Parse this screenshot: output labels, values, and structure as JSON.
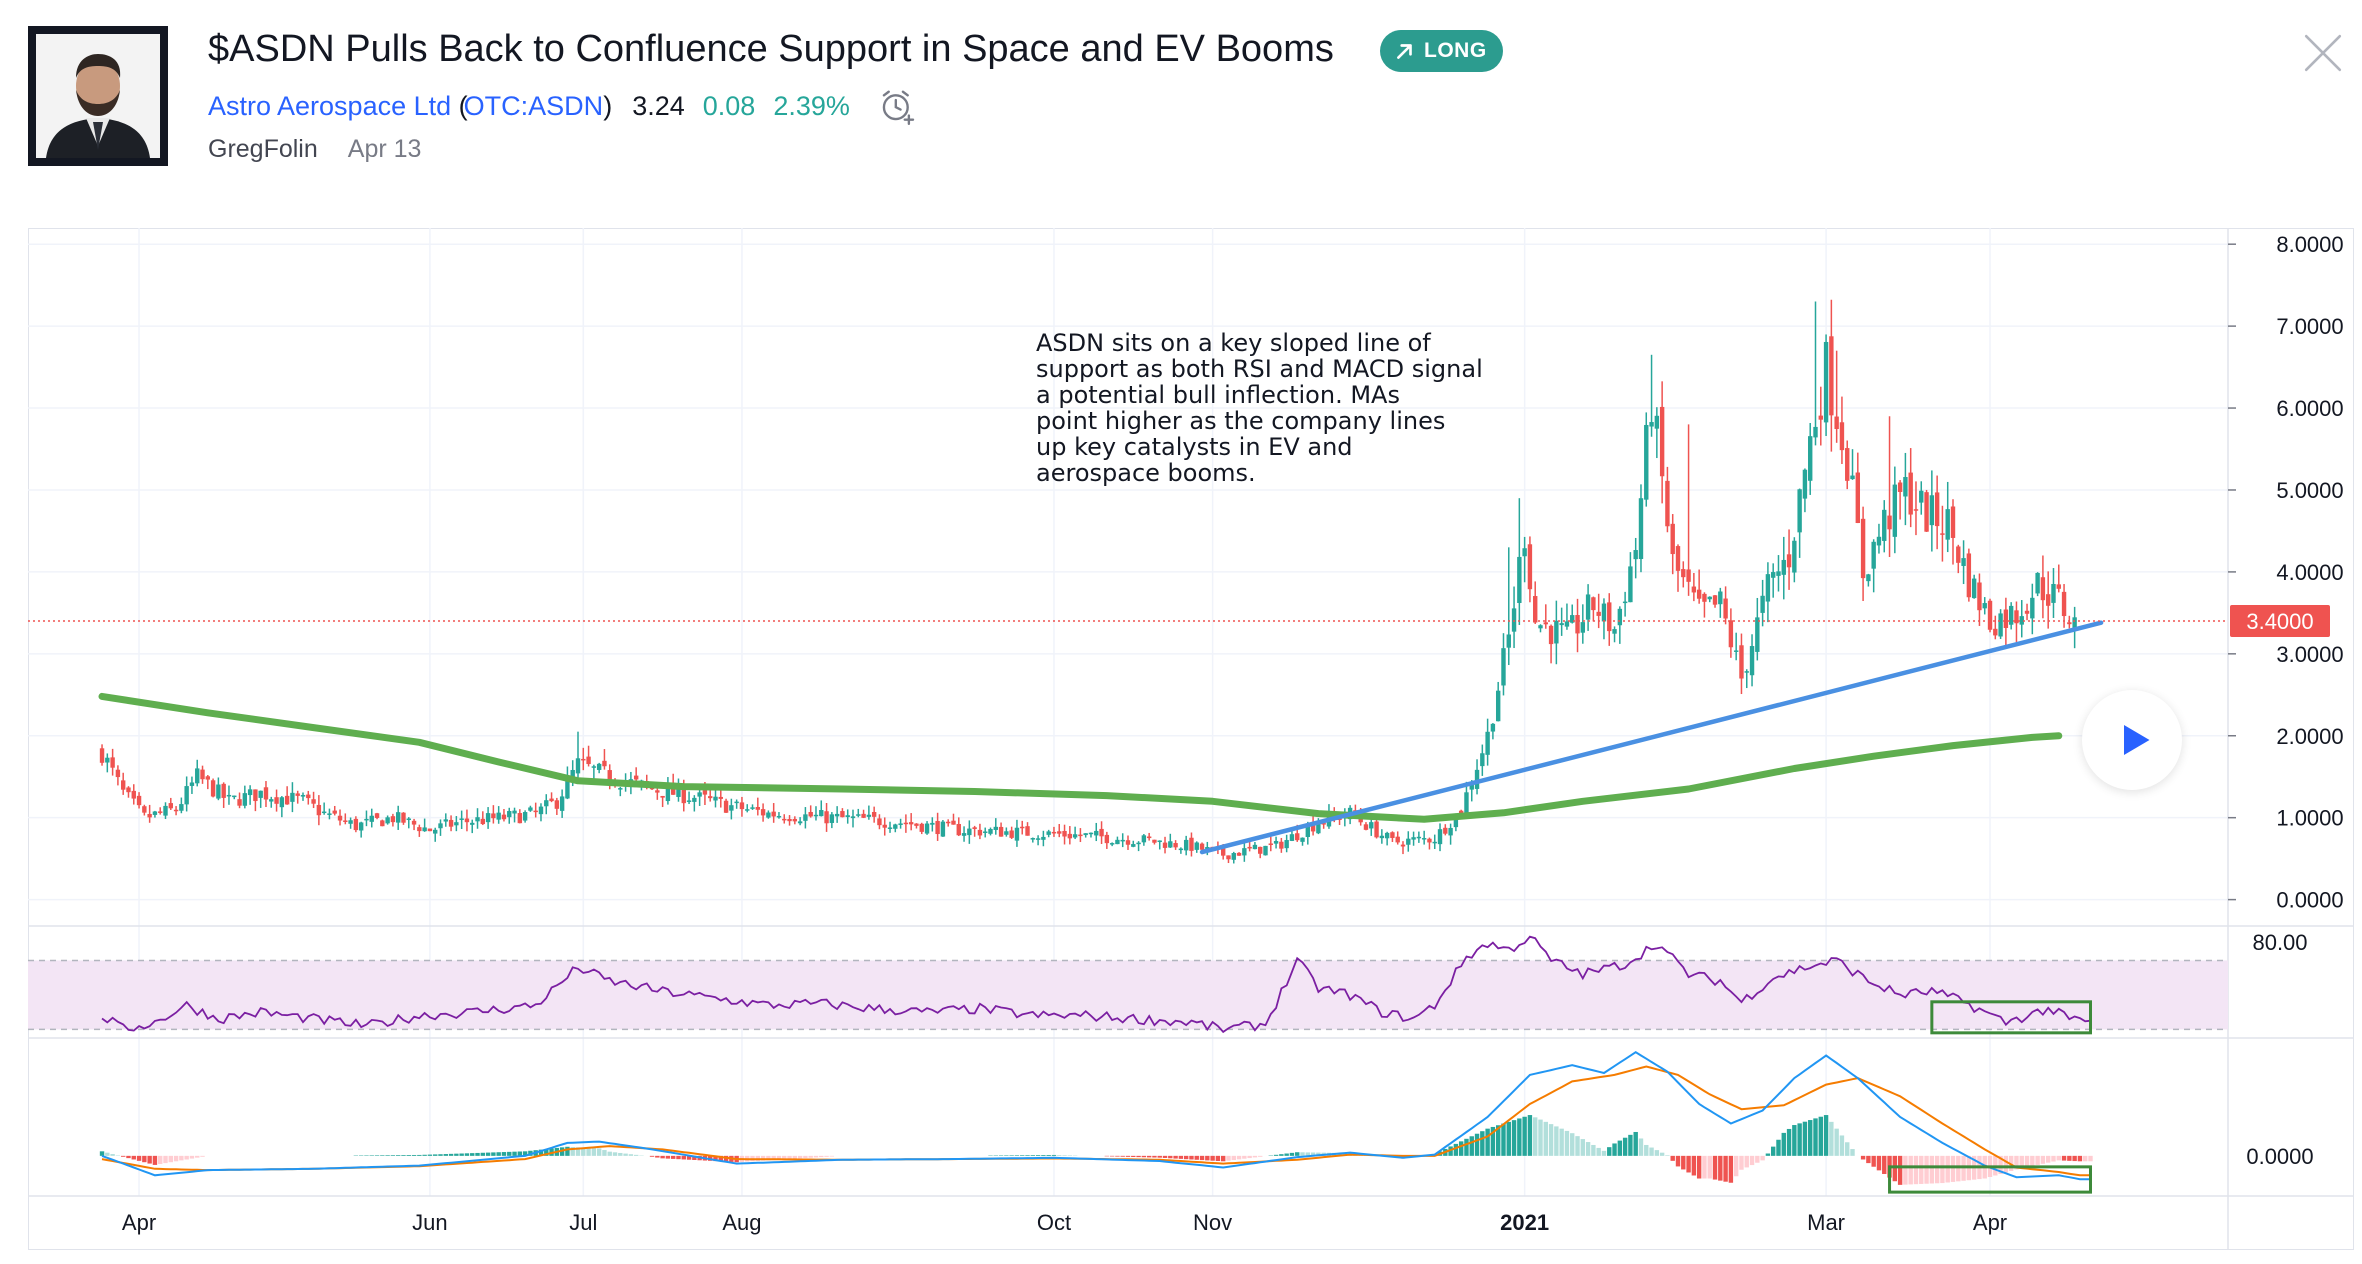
{
  "idea": {
    "title": "$ASDN Pulls Back to Confluence Support in Space and EV Booms",
    "badge": "LONG",
    "symbol_name": "Astro Aerospace Ltd",
    "symbol_open": "(",
    "symbol_ticker": "OTC:ASDN",
    "symbol_close": ")",
    "price": "3.24",
    "change": "0.08",
    "change_pct": "2.39%",
    "author": "GregFolin",
    "date": "Apr 13"
  },
  "colors": {
    "up": "#26a69a",
    "down": "#ef5350",
    "ma": "#5fae4f",
    "trendline": "#4a90e2",
    "rsi_line": "#7b1fa2",
    "rsi_band": "#f3e5f5",
    "macd_line": "#2196f3",
    "signal_line": "#f57c00",
    "accent": "#2962ff",
    "badge": "#2c9c8f"
  },
  "icons": {
    "badge": "arrow-up-right-icon",
    "alarm": "alarm-clock-icon",
    "close": "close-icon",
    "play": "play-icon"
  },
  "note": {
    "lines": [
      "ASDN sits on a key sloped line of",
      "support as both RSI and MACD signal",
      "a potential bull inflection. MAs",
      "point higher as the company lines",
      "up key catalysts in EV and",
      "aerospace booms."
    ]
  },
  "chart_data": {
    "type": "candlestick",
    "price_axis": {
      "ticks": [
        0,
        1,
        2,
        3,
        4,
        5,
        6,
        7,
        8
      ],
      "tick_labels": [
        "0.0000",
        "1.0000",
        "2.0000",
        "3.0000",
        "4.0000",
        "5.0000",
        "6.0000",
        "7.0000",
        "8.0000"
      ],
      "range": [
        -0.2,
        8.1
      ],
      "last_price_label": "3.4000",
      "last_price": 3.4
    },
    "time_axis": {
      "labels": [
        "Apr",
        "Jun",
        "Jul",
        "Aug",
        "Oct",
        "Nov",
        "2021",
        "Mar",
        "Apr"
      ],
      "label_positions": [
        7,
        62,
        91,
        121,
        180,
        210,
        269,
        326,
        357
      ],
      "bold": [
        false,
        false,
        false,
        false,
        false,
        false,
        true,
        false,
        false
      ],
      "range": [
        -14,
        402
      ]
    },
    "price_anchors": [
      [
        0,
        1.8
      ],
      [
        4,
        1.3
      ],
      [
        8,
        1.0
      ],
      [
        14,
        1.1
      ],
      [
        18,
        1.5
      ],
      [
        24,
        1.2
      ],
      [
        30,
        1.3
      ],
      [
        38,
        1.2
      ],
      [
        42,
        1.05
      ],
      [
        48,
        0.9
      ],
      [
        55,
        1.0
      ],
      [
        62,
        0.85
      ],
      [
        68,
        0.95
      ],
      [
        76,
        1.0
      ],
      [
        82,
        1.05
      ],
      [
        86,
        1.2
      ],
      [
        90,
        1.65
      ],
      [
        96,
        1.5
      ],
      [
        104,
        1.35
      ],
      [
        112,
        1.25
      ],
      [
        118,
        1.15
      ],
      [
        126,
        1.05
      ],
      [
        138,
        1.0
      ],
      [
        150,
        0.95
      ],
      [
        162,
        0.85
      ],
      [
        174,
        0.82
      ],
      [
        186,
        0.78
      ],
      [
        198,
        0.72
      ],
      [
        206,
        0.65
      ],
      [
        212,
        0.55
      ],
      [
        222,
        0.65
      ],
      [
        230,
        0.95
      ],
      [
        236,
        1.05
      ],
      [
        244,
        0.7
      ],
      [
        252,
        0.75
      ],
      [
        257,
        1.1
      ],
      [
        262,
        2.0
      ],
      [
        266,
        3.2
      ],
      [
        269,
        4.5
      ],
      [
        271,
        3.4
      ],
      [
        277,
        3.2
      ],
      [
        282,
        3.6
      ],
      [
        286,
        3.3
      ],
      [
        290,
        4.3
      ],
      [
        293,
        6.1
      ],
      [
        297,
        4.1
      ],
      [
        302,
        3.5
      ],
      [
        306,
        3.6
      ],
      [
        310,
        2.7
      ],
      [
        315,
        3.8
      ],
      [
        319,
        4.2
      ],
      [
        323,
        5.6
      ],
      [
        326,
        6.5
      ],
      [
        330,
        5.4
      ],
      [
        333,
        4.0
      ],
      [
        337,
        4.6
      ],
      [
        341,
        5.0
      ],
      [
        345,
        4.7
      ],
      [
        349,
        4.6
      ],
      [
        353,
        3.9
      ],
      [
        357,
        3.4
      ],
      [
        362,
        3.5
      ],
      [
        366,
        3.85
      ],
      [
        370,
        3.65
      ],
      [
        373,
        3.35
      ]
    ],
    "spikes": [
      [
        90,
        2.05
      ],
      [
        293,
        6.65
      ],
      [
        300,
        5.8
      ],
      [
        324,
        7.3
      ],
      [
        328,
        6.7
      ],
      [
        338,
        5.9
      ],
      [
        352,
        4.3
      ],
      [
        268,
        4.9
      ],
      [
        266,
        4.3
      ]
    ],
    "moving_average": {
      "name": "",
      "points": [
        [
          0,
          2.48
        ],
        [
          20,
          2.28
        ],
        [
          40,
          2.1
        ],
        [
          60,
          1.92
        ],
        [
          75,
          1.68
        ],
        [
          90,
          1.45
        ],
        [
          110,
          1.38
        ],
        [
          140,
          1.35
        ],
        [
          165,
          1.32
        ],
        [
          190,
          1.27
        ],
        [
          210,
          1.2
        ],
        [
          230,
          1.05
        ],
        [
          250,
          0.98
        ],
        [
          265,
          1.06
        ],
        [
          280,
          1.2
        ],
        [
          300,
          1.35
        ],
        [
          320,
          1.6
        ],
        [
          335,
          1.75
        ],
        [
          350,
          1.88
        ],
        [
          365,
          1.98
        ],
        [
          370,
          2.0
        ]
      ]
    },
    "trendline": {
      "start": [
        208,
        0.58
      ],
      "end": [
        378,
        3.38
      ]
    },
    "rsi": {
      "label": "80.00",
      "upper": 70,
      "lower": 30,
      "range": [
        25,
        90
      ],
      "anchors": [
        [
          0,
          38
        ],
        [
          4,
          30
        ],
        [
          10,
          34
        ],
        [
          16,
          44
        ],
        [
          22,
          36
        ],
        [
          30,
          40
        ],
        [
          40,
          36
        ],
        [
          50,
          32
        ],
        [
          60,
          38
        ],
        [
          70,
          40
        ],
        [
          82,
          44
        ],
        [
          90,
          66
        ],
        [
          96,
          58
        ],
        [
          106,
          52
        ],
        [
          116,
          48
        ],
        [
          126,
          44
        ],
        [
          136,
          45
        ],
        [
          146,
          42
        ],
        [
          156,
          40
        ],
        [
          166,
          42
        ],
        [
          176,
          38
        ],
        [
          186,
          38
        ],
        [
          196,
          36
        ],
        [
          206,
          34
        ],
        [
          212,
          30
        ],
        [
          220,
          33
        ],
        [
          226,
          70
        ],
        [
          230,
          54
        ],
        [
          236,
          50
        ],
        [
          242,
          40
        ],
        [
          248,
          36
        ],
        [
          252,
          44
        ],
        [
          258,
          72
        ],
        [
          262,
          80
        ],
        [
          266,
          76
        ],
        [
          270,
          84
        ],
        [
          274,
          70
        ],
        [
          280,
          62
        ],
        [
          288,
          68
        ],
        [
          294,
          80
        ],
        [
          300,
          62
        ],
        [
          306,
          58
        ],
        [
          310,
          46
        ],
        [
          316,
          60
        ],
        [
          322,
          66
        ],
        [
          328,
          70
        ],
        [
          334,
          58
        ],
        [
          340,
          50
        ],
        [
          346,
          52
        ],
        [
          352,
          46
        ],
        [
          356,
          40
        ],
        [
          360,
          34
        ],
        [
          364,
          38
        ],
        [
          368,
          42
        ],
        [
          372,
          36
        ],
        [
          376,
          34
        ]
      ],
      "highlight_box": [
        346,
        376
      ]
    },
    "macd": {
      "label": "0.0000",
      "range": [
        -0.62,
        1.82
      ],
      "macd_anchors": [
        [
          0,
          0.0
        ],
        [
          10,
          -0.3
        ],
        [
          20,
          -0.22
        ],
        [
          40,
          -0.2
        ],
        [
          60,
          -0.15
        ],
        [
          80,
          0.0
        ],
        [
          88,
          0.2
        ],
        [
          94,
          0.22
        ],
        [
          104,
          0.1
        ],
        [
          120,
          -0.12
        ],
        [
          140,
          -0.06
        ],
        [
          160,
          -0.05
        ],
        [
          180,
          -0.03
        ],
        [
          200,
          -0.08
        ],
        [
          212,
          -0.18
        ],
        [
          226,
          -0.02
        ],
        [
          236,
          0.05
        ],
        [
          246,
          -0.03
        ],
        [
          252,
          0.02
        ],
        [
          262,
          0.6
        ],
        [
          270,
          1.25
        ],
        [
          278,
          1.4
        ],
        [
          284,
          1.28
        ],
        [
          290,
          1.6
        ],
        [
          296,
          1.3
        ],
        [
          302,
          0.8
        ],
        [
          308,
          0.5
        ],
        [
          314,
          0.7
        ],
        [
          320,
          1.2
        ],
        [
          326,
          1.55
        ],
        [
          332,
          1.2
        ],
        [
          340,
          0.6
        ],
        [
          348,
          0.2
        ],
        [
          356,
          -0.15
        ],
        [
          362,
          -0.33
        ],
        [
          370,
          -0.3
        ],
        [
          374,
          -0.36
        ]
      ],
      "signal_anchors": [
        [
          0,
          -0.05
        ],
        [
          10,
          -0.2
        ],
        [
          20,
          -0.22
        ],
        [
          40,
          -0.2
        ],
        [
          60,
          -0.16
        ],
        [
          80,
          -0.05
        ],
        [
          88,
          0.1
        ],
        [
          96,
          0.15
        ],
        [
          106,
          0.1
        ],
        [
          120,
          -0.05
        ],
        [
          140,
          -0.06
        ],
        [
          160,
          -0.05
        ],
        [
          180,
          -0.04
        ],
        [
          200,
          -0.06
        ],
        [
          212,
          -0.12
        ],
        [
          226,
          -0.06
        ],
        [
          236,
          0.02
        ],
        [
          246,
          0.0
        ],
        [
          252,
          0.0
        ],
        [
          262,
          0.3
        ],
        [
          270,
          0.8
        ],
        [
          278,
          1.15
        ],
        [
          286,
          1.25
        ],
        [
          292,
          1.38
        ],
        [
          298,
          1.25
        ],
        [
          304,
          0.95
        ],
        [
          310,
          0.72
        ],
        [
          318,
          0.78
        ],
        [
          326,
          1.1
        ],
        [
          332,
          1.2
        ],
        [
          340,
          0.92
        ],
        [
          348,
          0.5
        ],
        [
          356,
          0.1
        ],
        [
          362,
          -0.18
        ],
        [
          370,
          -0.25
        ],
        [
          374,
          -0.3
        ]
      ],
      "highlight_box": [
        338,
        376
      ]
    }
  }
}
